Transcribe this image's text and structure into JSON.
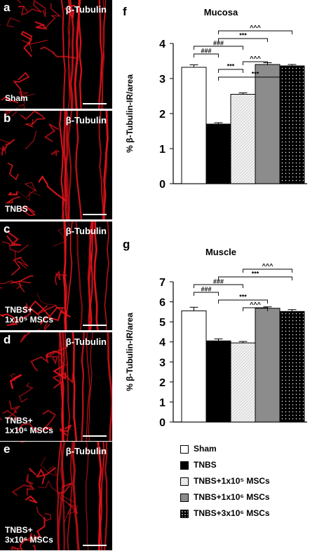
{
  "image_panels": [
    {
      "letter": "a",
      "marker": "β-Tubulin",
      "condition_line1": "Sham",
      "condition_line2": ""
    },
    {
      "letter": "b",
      "marker": "β-Tubulin",
      "condition_line1": "TNBS",
      "condition_line2": ""
    },
    {
      "letter": "c",
      "marker": "β-Tubulin",
      "condition_line1": "TNBS+",
      "condition_line2": "1x10⁵ MSCs"
    },
    {
      "letter": "d",
      "marker": "β-Tubulin",
      "condition_line1": "TNBS+",
      "condition_line2": "1x10⁶ MSCs"
    },
    {
      "letter": "e",
      "marker": "β-Tubulin",
      "condition_line1": "TNBS+",
      "condition_line2": "3x10⁶ MSCs"
    }
  ],
  "legend": [
    {
      "label": "Sham"
    },
    {
      "label": "TNBS"
    },
    {
      "label": "TNBS+1x10⁵ MSCs"
    },
    {
      "label": "TNBS+1x10⁶ MSCs"
    },
    {
      "label": "TNBS+3x10⁶ MSCs"
    }
  ],
  "colors": {
    "fiber": "#e8141c",
    "panel_bg": "#000000",
    "bar_tnbs": "#000000",
    "bar_gray": "#8c8c8c"
  },
  "chart_data": [
    {
      "type": "bar",
      "panel_letter": "f",
      "title": "Mucosa",
      "ylabel": "% β-Tubulin-IR/area",
      "ylim": [
        0,
        4
      ],
      "yticks": [
        0,
        1,
        2,
        3,
        4
      ],
      "categories": [
        "Sham",
        "TNBS",
        "TNBS+1x10⁵ MSCs",
        "TNBS+1x10⁶ MSCs",
        "TNBS+3x10⁶ MSCs"
      ],
      "values": [
        3.32,
        1.7,
        2.55,
        3.4,
        3.36
      ],
      "errors": [
        0.07,
        0.04,
        0.04,
        0.05,
        0.04
      ],
      "significance": [
        {
          "from": 1,
          "to": 4,
          "label": "^^^"
        },
        {
          "from": 1,
          "to": 3,
          "label": "***"
        },
        {
          "from": 0,
          "to": 2,
          "label": "###"
        },
        {
          "from": 0,
          "to": 1,
          "label": "###"
        },
        {
          "from": 2,
          "to": 3,
          "label": "^^^"
        },
        {
          "from": 1,
          "to": 2,
          "label": "***"
        },
        {
          "from": 1,
          "to": 4,
          "label": "***"
        }
      ]
    },
    {
      "type": "bar",
      "panel_letter": "g",
      "title": "Muscle",
      "ylabel": "% β-Tubulin-IR/area",
      "ylim": [
        0,
        7
      ],
      "yticks": [
        0,
        1,
        2,
        3,
        4,
        5,
        6,
        7
      ],
      "categories": [
        "Sham",
        "TNBS",
        "TNBS+1x10⁵ MSCs",
        "TNBS+1x10⁶ MSCs",
        "TNBS+3x10⁶ MSCs"
      ],
      "values": [
        5.55,
        4.05,
        3.95,
        5.68,
        5.52
      ],
      "errors": [
        0.18,
        0.1,
        0.07,
        0.07,
        0.09
      ],
      "significance": [
        {
          "from": 2,
          "to": 4,
          "label": "^^^"
        },
        {
          "from": 1,
          "to": 4,
          "label": "***"
        },
        {
          "from": 0,
          "to": 2,
          "label": "###"
        },
        {
          "from": 0,
          "to": 1,
          "label": "###"
        },
        {
          "from": 1,
          "to": 3,
          "label": "***"
        },
        {
          "from": 2,
          "to": 3,
          "label": "^^^"
        }
      ]
    }
  ]
}
